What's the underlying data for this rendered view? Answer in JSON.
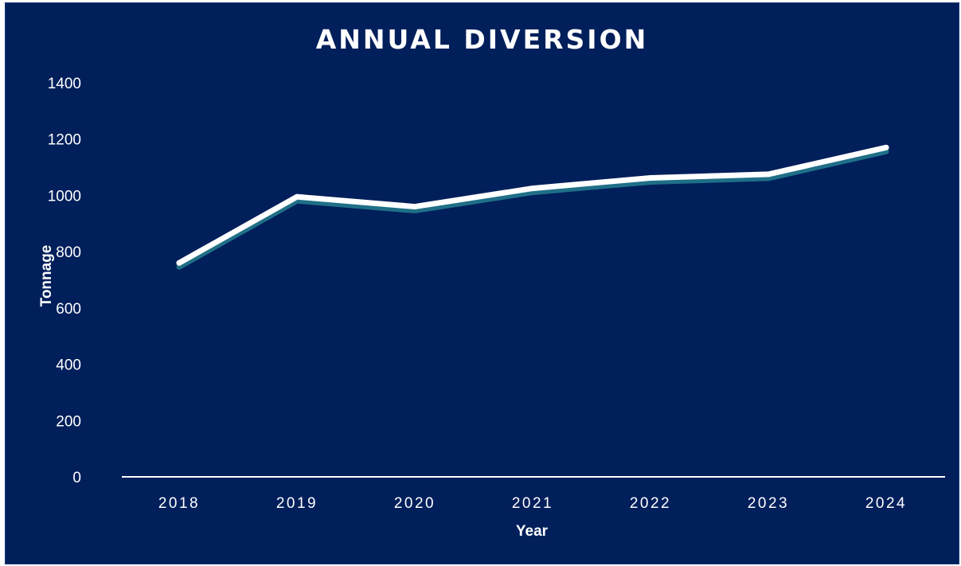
{
  "chart_data": {
    "type": "line",
    "title": "ANNUAL DIVERSION",
    "xlabel": "Year",
    "ylabel": "Tonnage",
    "categories": [
      "2018",
      "2019",
      "2020",
      "2021",
      "2022",
      "2023",
      "2024"
    ],
    "series": [
      {
        "values": [
          760,
          995,
          960,
          1025,
          1062,
          1075,
          1170
        ]
      }
    ],
    "ylim": [
      0,
      1400
    ],
    "yticks": [
      0,
      200,
      400,
      600,
      800,
      1000,
      1200,
      1400
    ],
    "grid": false,
    "legend": "none",
    "colors": {
      "background": "#001f5b",
      "line": "#ffffff",
      "line_shadow": "#1f6f87",
      "text": "#ffffff"
    }
  }
}
